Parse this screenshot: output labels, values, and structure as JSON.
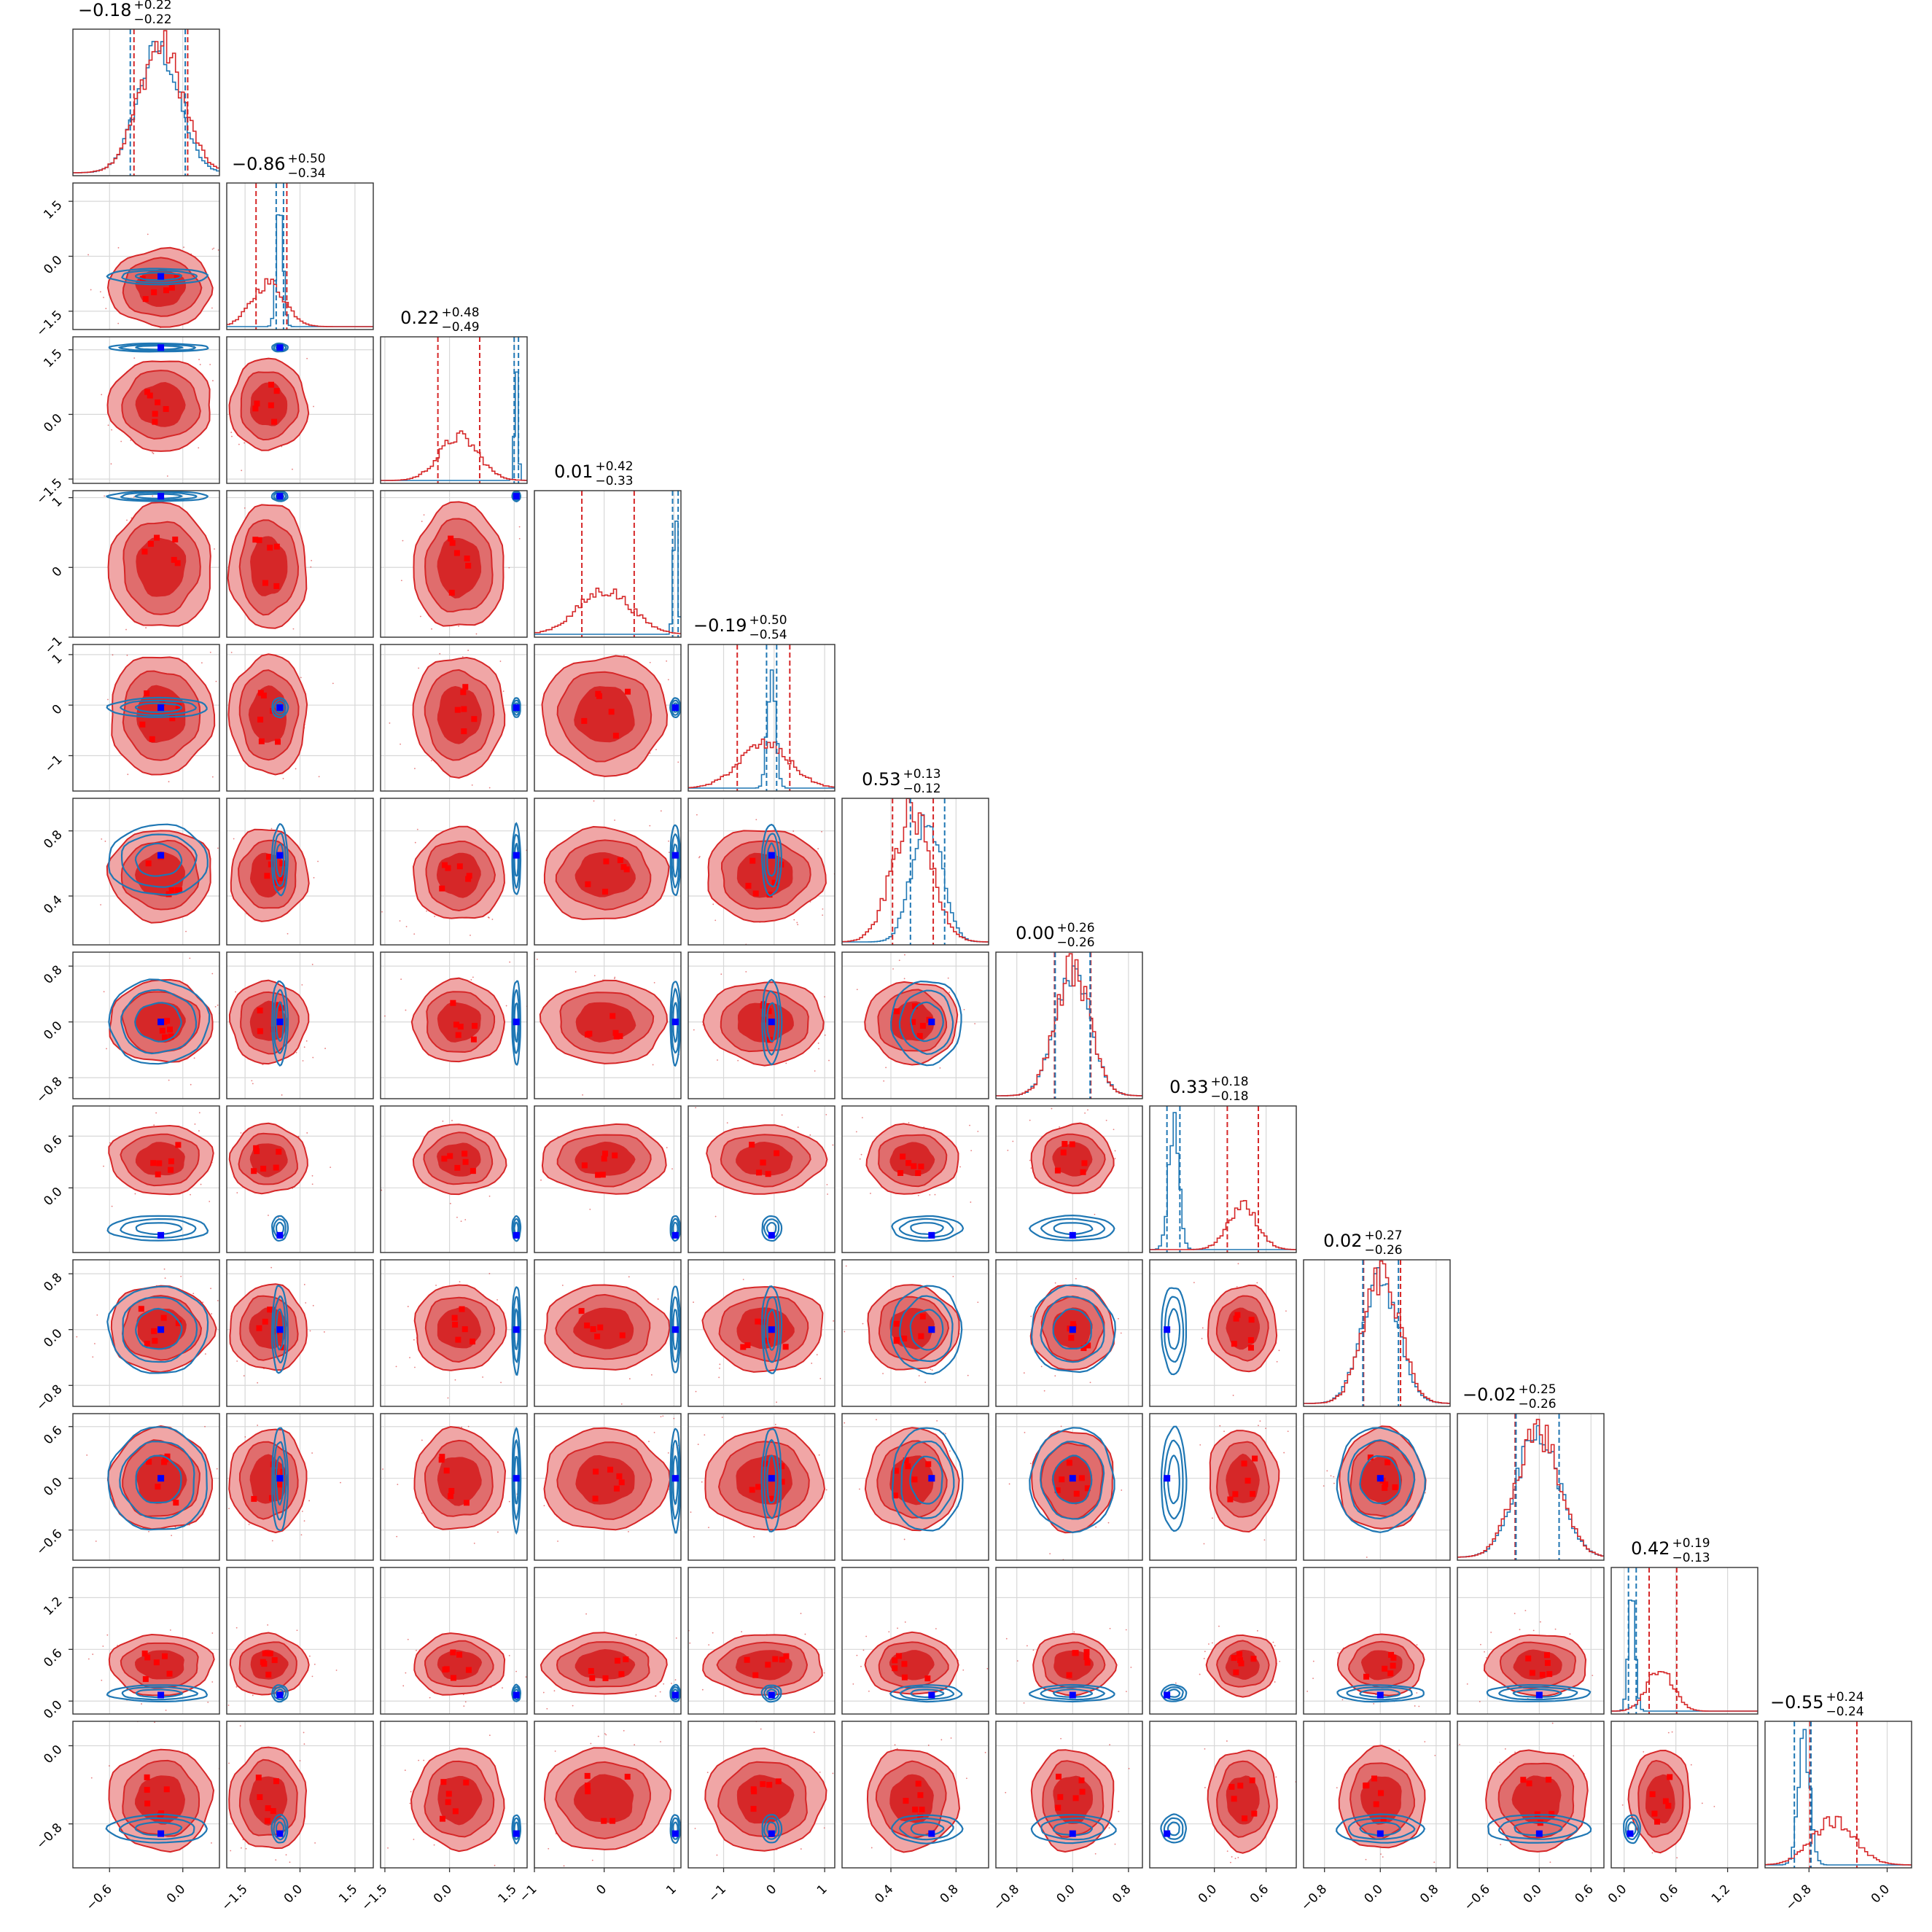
{
  "chart_data": {
    "type": "corner",
    "n_params": 12,
    "series": [
      {
        "name": "",
        "color": "#d62728",
        "fill": "#e06d6d"
      },
      {
        "name": "",
        "color": "#1f77b4"
      }
    ],
    "grid": true,
    "params": [
      {
        "range": [
          -0.9,
          0.3
        ],
        "ticks": [
          -0.6,
          0.0
        ],
        "tick_labels": [
          "−0.6",
          "0.0"
        ],
        "median": -0.18,
        "plus": 0.22,
        "minus": 0.22,
        "truth": -0.18,
        "sd_red": 0.18,
        "blue_mean": -0.2,
        "blue_sd": 0.17,
        "blue_q": [
          -0.43,
          0.02
        ],
        "title": "−0.18",
        "title_sup": "+0.22",
        "title_sub": "−0.22"
      },
      {
        "range": [
          -2.0,
          2.0
        ],
        "ticks": [
          -1.5,
          0.0,
          1.5
        ],
        "tick_labels": [
          "−1.5",
          "0.0",
          "1.5"
        ],
        "median": -0.86,
        "plus": 0.5,
        "minus": 0.34,
        "truth": -0.55,
        "sd_red": 0.45,
        "blue_mean": -0.55,
        "blue_sd": 0.09,
        "blue_q": [
          -0.65,
          -0.45
        ],
        "title": "−0.86",
        "title_sup": "+0.50",
        "title_sub": "−0.34"
      },
      {
        "range": [
          -1.6,
          1.8
        ],
        "ticks": [
          -1.5,
          0.0,
          1.5
        ],
        "tick_labels": [
          "−1.5",
          "0.0",
          "1.5"
        ],
        "median": 0.22,
        "plus": 0.48,
        "minus": 0.49,
        "truth": 1.55,
        "sd_red": 0.45,
        "blue_mean": 1.55,
        "blue_sd": 0.04,
        "blue_q": [
          1.5,
          1.6
        ],
        "title": "0.22",
        "title_sup": "+0.48",
        "title_sub": "−0.49"
      },
      {
        "range": [
          -1.0,
          1.1
        ],
        "ticks": [
          -1,
          0,
          1
        ],
        "tick_labels": [
          "−1",
          "0",
          "1"
        ],
        "median": 0.01,
        "plus": 0.42,
        "minus": 0.33,
        "truth": 1.02,
        "sd_red": 0.38,
        "blue_mean": 1.02,
        "blue_sd": 0.03,
        "blue_q": [
          0.98,
          1.06
        ],
        "title": "0.01",
        "title_sup": "+0.42",
        "title_sub": "−0.33"
      },
      {
        "range": [
          -1.7,
          1.2
        ],
        "ticks": [
          -1,
          0,
          1
        ],
        "tick_labels": [
          "−1",
          "0",
          "1"
        ],
        "median": -0.19,
        "plus": 0.5,
        "minus": 0.54,
        "truth": -0.05,
        "sd_red": 0.5,
        "blue_mean": -0.05,
        "blue_sd": 0.08,
        "blue_q": [
          -0.15,
          0.05
        ],
        "title": "−0.19",
        "title_sup": "+0.50",
        "title_sub": "−0.54"
      },
      {
        "range": [
          0.1,
          1.0
        ],
        "ticks": [
          0.4,
          0.8
        ],
        "tick_labels": [
          "0.4",
          "0.8"
        ],
        "median": 0.53,
        "plus": 0.13,
        "minus": 0.12,
        "truth": 0.65,
        "sd_red": 0.12,
        "blue_mean": 0.62,
        "blue_sd": 0.09,
        "blue_q": [
          0.52,
          0.73
        ],
        "title": "0.53",
        "title_sup": "+0.13",
        "title_sub": "−0.12"
      },
      {
        "range": [
          -1.1,
          1.0
        ],
        "ticks": [
          -0.8,
          0.0,
          0.8
        ],
        "tick_labels": [
          "−0.8",
          "0.0",
          "0.8"
        ],
        "median": 0.0,
        "plus": 0.26,
        "minus": 0.26,
        "truth": 0.0,
        "sd_red": 0.25,
        "blue_mean": 0.0,
        "blue_sd": 0.25,
        "blue_q": [
          -0.25,
          0.25
        ],
        "title": "0.00",
        "title_sup": "+0.26",
        "title_sub": "−0.26"
      },
      {
        "range": [
          -0.75,
          0.95
        ],
        "ticks": [
          0.0,
          0.6
        ],
        "tick_labels": [
          "0.0",
          "0.6"
        ],
        "median": 0.33,
        "plus": 0.18,
        "minus": 0.18,
        "truth": -0.55,
        "sd_red": 0.17,
        "blue_mean": -0.47,
        "blue_sd": 0.06,
        "blue_q": [
          -0.55,
          -0.4
        ],
        "title": "0.33",
        "title_sup": "+0.18",
        "title_sub": "−0.18"
      },
      {
        "range": [
          -1.1,
          1.0
        ],
        "ticks": [
          -0.8,
          0.0,
          0.8
        ],
        "tick_labels": [
          "−0.8",
          "0.0",
          "0.8"
        ],
        "median": 0.02,
        "plus": 0.27,
        "minus": 0.26,
        "truth": 0.0,
        "sd_red": 0.26,
        "blue_mean": 0.0,
        "blue_sd": 0.26,
        "blue_q": [
          -0.25,
          0.26
        ],
        "title": "0.02",
        "title_sup": "+0.27",
        "title_sub": "−0.26"
      },
      {
        "range": [
          -0.95,
          0.75
        ],
        "ticks": [
          -0.6,
          0.0,
          0.6
        ],
        "tick_labels": [
          "−0.6",
          "0.0",
          "0.6"
        ],
        "median": -0.02,
        "plus": 0.25,
        "minus": 0.26,
        "truth": 0.0,
        "sd_red": 0.25,
        "blue_mean": -0.02,
        "blue_sd": 0.25,
        "blue_q": [
          -0.27,
          0.23
        ],
        "title": "−0.02",
        "title_sup": "+0.25",
        "title_sub": "−0.26"
      },
      {
        "range": [
          -0.15,
          1.55
        ],
        "ticks": [
          0.0,
          0.6,
          1.2
        ],
        "tick_labels": [
          "0.0",
          "0.6",
          "1.2"
        ],
        "median": 0.42,
        "plus": 0.19,
        "minus": 0.13,
        "truth": 0.07,
        "sd_red": 0.15,
        "blue_mean": 0.09,
        "blue_sd": 0.04,
        "blue_q": [
          0.05,
          0.14
        ],
        "title": "0.42",
        "title_sup": "+0.19",
        "title_sub": "−0.13"
      },
      {
        "range": [
          -1.25,
          0.25
        ],
        "ticks": [
          -0.8,
          0.0
        ],
        "tick_labels": [
          "−0.8",
          "0.0"
        ],
        "median": -0.55,
        "plus": 0.24,
        "minus": 0.24,
        "truth": -0.9,
        "sd_red": 0.22,
        "blue_mean": -0.85,
        "blue_sd": 0.06,
        "blue_q": [
          -0.95,
          -0.78
        ],
        "title": "−0.55",
        "title_sup": "+0.24",
        "title_sub": "−0.24"
      }
    ]
  }
}
